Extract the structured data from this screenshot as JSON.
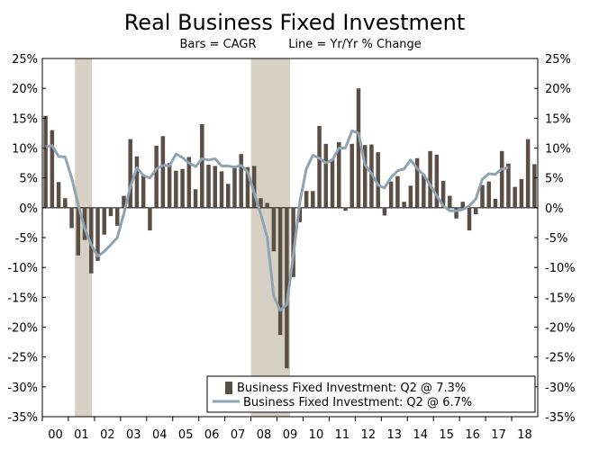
{
  "chart_data": {
    "type": "bar+line",
    "title": "Real Business Fixed Investment",
    "subtitle_bars": "Bars = CAGR",
    "subtitle_line": "Line = Yr/Yr % Change",
    "y_ticks": [
      "25%",
      "20%",
      "15%",
      "10%",
      "5%",
      "0%",
      "-5%",
      "-10%",
      "-15%",
      "-20%",
      "-25%",
      "-30%",
      "-35%"
    ],
    "ylim": [
      -35,
      25
    ],
    "x_labels": [
      "00",
      "01",
      "02",
      "03",
      "04",
      "05",
      "06",
      "07",
      "08",
      "09",
      "10",
      "11",
      "12",
      "13",
      "14",
      "15",
      "16",
      "17",
      "18"
    ],
    "x_start_year": 2000,
    "recessions": [
      {
        "start": 2001.25,
        "end": 2001.9
      },
      {
        "start": 2008.0,
        "end": 2009.5
      }
    ],
    "series": [
      {
        "name": "Business Fixed Investment: Q2 @ 7.3%",
        "kind": "bar",
        "color": "#5b4f45",
        "values": [
          15.4,
          13.0,
          4.3,
          1.6,
          -3.4,
          -8.0,
          -5.4,
          -11.0,
          -8.9,
          -4.5,
          -1.4,
          -3.0,
          2.0,
          11.5,
          8.6,
          5.4,
          -3.8,
          10.4,
          12.0,
          7.5,
          6.2,
          6.5,
          8.5,
          3.1,
          14.0,
          7.2,
          7.0,
          6.1,
          4.0,
          6.7,
          9.0,
          6.8,
          7.0,
          1.6,
          0.8,
          -7.3,
          -21.3,
          -26.9,
          -11.6,
          -2.4,
          2.8,
          2.8,
          13.7,
          10.7,
          8.2,
          11.0,
          -0.5,
          10.7,
          20.0,
          10.5,
          10.6,
          9.3,
          -1.3,
          4.4,
          5.3,
          1.0,
          3.7,
          8.3,
          5.5,
          9.5,
          8.9,
          4.5,
          2.0,
          -1.8,
          1.0,
          -3.8,
          -1.1,
          3.8,
          4.4,
          1.5,
          9.5,
          7.4,
          3.5,
          4.8,
          11.5,
          7.3
        ]
      },
      {
        "name": "Business Fixed Investment: Q2 @ 6.7%",
        "kind": "line",
        "color": "#8fa3b1",
        "values": [
          10.2,
          10.4,
          8.6,
          8.5,
          5.0,
          0.5,
          -3.5,
          -6.2,
          -8.1,
          -7.3,
          -6.2,
          -5.0,
          -1.0,
          3.5,
          6.7,
          5.4,
          5.0,
          6.5,
          7.1,
          7.0,
          9.0,
          8.4,
          7.5,
          6.9,
          8.2,
          8.0,
          8.2,
          7.0,
          7.0,
          6.8,
          7.1,
          6.0,
          2.5,
          -1.0,
          -5.0,
          -14.8,
          -17.2,
          -16.2,
          -8.0,
          1.0,
          6.5,
          8.8,
          8.3,
          7.5,
          8.0,
          10.0,
          10.0,
          12.9,
          12.5,
          7.2,
          5.7,
          3.8,
          3.3,
          5.1,
          6.2,
          6.5,
          8.0,
          6.6,
          5.5,
          3.8,
          2.0,
          0.3,
          -0.5,
          -0.5,
          -0.3,
          0.3,
          1.5,
          4.8,
          5.7,
          5.6,
          6.5,
          6.7
        ]
      }
    ],
    "legend_position": "bottom-right"
  }
}
